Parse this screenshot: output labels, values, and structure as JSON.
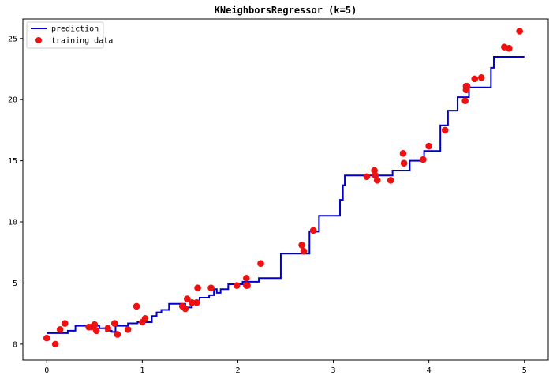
{
  "chart_data": {
    "type": "scatter",
    "title": "KNeighborsRegressor (k=5)",
    "xlabel": "",
    "ylabel": "",
    "xlim": [
      -0.25,
      5.25
    ],
    "ylim": [
      -1.3,
      26.6
    ],
    "xticks": [
      0,
      1,
      2,
      3,
      4,
      5
    ],
    "yticks": [
      0,
      5,
      10,
      15,
      20,
      25
    ],
    "grid": false,
    "legend_position": "top-left",
    "colors": {
      "prediction": "#0000cc",
      "training": "#ee1111"
    },
    "series": [
      {
        "name": "prediction",
        "kind": "step-line",
        "x": [
          0,
          0.08,
          0.15,
          0.22,
          0.3,
          0.5,
          0.55,
          0.62,
          0.68,
          0.72,
          0.78,
          0.85,
          0.95,
          1.05,
          1.1,
          1.15,
          1.2,
          1.28,
          1.35,
          1.45,
          1.52,
          1.6,
          1.7,
          1.75,
          1.78,
          1.82,
          1.9,
          2.05,
          2.15,
          2.22,
          2.38,
          2.45,
          2.7,
          2.75,
          2.82,
          2.85,
          3.05,
          3.07,
          3.1,
          3.12,
          3.4,
          3.55,
          3.62,
          3.75,
          3.8,
          3.95,
          4.05,
          4.12,
          4.2,
          4.3,
          4.37,
          4.42,
          4.6,
          4.65,
          4.68,
          5.0
        ],
        "y": [
          0.9,
          0.9,
          0.9,
          1.1,
          1.5,
          1.5,
          1.3,
          1.1,
          1.0,
          1.5,
          1.5,
          1.7,
          1.8,
          1.8,
          2.3,
          2.6,
          2.8,
          3.3,
          3.3,
          3.0,
          3.4,
          3.8,
          4.0,
          4.5,
          4.2,
          4.5,
          4.9,
          5.1,
          5.1,
          5.4,
          5.4,
          7.4,
          7.4,
          9.2,
          9.2,
          10.5,
          10.5,
          11.8,
          13.0,
          13.8,
          13.8,
          13.8,
          14.2,
          14.2,
          15.0,
          15.8,
          15.8,
          17.9,
          19.1,
          20.2,
          20.2,
          21.0,
          21.0,
          22.6,
          23.5,
          23.5
        ]
      },
      {
        "name": "training data",
        "kind": "scatter",
        "x": [
          0.0,
          0.09,
          0.14,
          0.19,
          0.44,
          0.47,
          0.5,
          0.52,
          0.64,
          0.71,
          0.74,
          0.85,
          0.94,
          1.0,
          1.03,
          1.42,
          1.45,
          1.47,
          1.52,
          1.57,
          1.58,
          1.72,
          1.99,
          2.09,
          2.09,
          2.1,
          2.24,
          2.67,
          2.69,
          2.79,
          3.35,
          3.43,
          3.44,
          3.46,
          3.6,
          3.73,
          3.74,
          3.94,
          4.0,
          4.17,
          4.38,
          4.39,
          4.39,
          4.4,
          4.48,
          4.55,
          4.79,
          4.84,
          4.95
        ],
        "y": [
          0.5,
          0.0,
          1.2,
          1.7,
          1.4,
          1.4,
          1.6,
          1.1,
          1.3,
          1.7,
          0.8,
          1.2,
          3.1,
          1.8,
          2.1,
          3.1,
          2.9,
          3.7,
          3.4,
          3.4,
          4.6,
          4.6,
          4.8,
          5.4,
          4.8,
          4.8,
          6.6,
          8.1,
          7.6,
          9.3,
          13.7,
          14.2,
          13.8,
          13.4,
          13.4,
          15.6,
          14.8,
          15.1,
          16.2,
          17.5,
          19.9,
          20.8,
          21.1,
          21.1,
          21.7,
          21.8,
          24.3,
          24.2,
          25.6
        ]
      }
    ]
  }
}
